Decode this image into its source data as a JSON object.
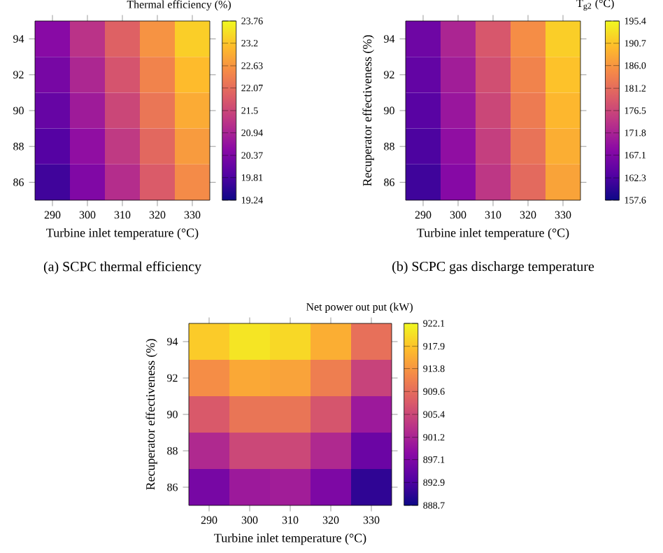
{
  "chart_data": [
    {
      "type": "heatmap",
      "title": "(a) SCPC thermal efficiency",
      "xlabel": "Turbine inlet temperature (°C)",
      "clabel": "Thermal efficiency (%)",
      "categories": [
        "290",
        "300",
        "310",
        "320",
        "330"
      ],
      "y_categories": [
        "94",
        "92",
        "90",
        "88",
        "86"
      ],
      "cells": [
        [
          20.5,
          21.2,
          21.9,
          22.6,
          23.3
        ],
        [
          20.3,
          21.0,
          21.7,
          22.4,
          23.1
        ],
        [
          20.1,
          20.8,
          21.5,
          22.2,
          22.9
        ],
        [
          19.9,
          20.6,
          21.3,
          22.0,
          22.7
        ],
        [
          19.7,
          20.4,
          21.1,
          21.8,
          22.5
        ]
      ],
      "clim": [
        19.24,
        23.76
      ],
      "cticks": [
        19.24,
        19.81,
        20.37,
        20.94,
        21.5,
        22.07,
        22.63,
        23.2,
        23.76
      ]
    },
    {
      "type": "heatmap",
      "title": "(b) SCPC  gas discharge temperature",
      "xlabel": "Turbine inlet temperature (°C)",
      "ylabel": "Recuperator effectiveness (%)",
      "clabel": "T$_{g2}$ (°C)",
      "categories": [
        "290",
        "300",
        "310",
        "320",
        "330"
      ],
      "y_categories": [
        "94",
        "92",
        "90",
        "88",
        "86"
      ],
      "cells": [
        [
          165.6,
          172.1,
          178.6,
          185.1,
          191.6
        ],
        [
          164.5,
          171.0,
          177.5,
          184.0,
          190.5
        ],
        [
          163.5,
          170.0,
          176.5,
          183.0,
          189.5
        ],
        [
          162.5,
          169.0,
          175.5,
          182.0,
          188.5
        ],
        [
          161.4,
          167.9,
          174.4,
          180.9,
          187.4
        ]
      ],
      "clim": [
        157.6,
        195.4
      ],
      "cticks": [
        157.6,
        162.3,
        167.1,
        171.8,
        176.5,
        181.2,
        {
          "value": 186,
          "label": "186.0"
        },
        190.7,
        195.4
      ]
    },
    {
      "type": "heatmap",
      "xlabel": "Turbine inlet temperature (°C)",
      "ylabel": "Recuperator effectiveness (%)",
      "clabel": "Net power out put (kW)",
      "categories": [
        "290",
        "300",
        "310",
        "320",
        "330"
      ],
      "y_categories": [
        "94",
        "92",
        "90",
        "88",
        "86"
      ],
      "cells": [
        [
          918.5,
          920.5,
          919.5,
          916,
          910
        ],
        [
          913,
          915.5,
          915,
          911.5,
          905
        ],
        [
          907.5,
          910.5,
          910.5,
          907,
          900
        ],
        [
          902,
          905.5,
          905.5,
          902,
          895.5
        ],
        [
          896.5,
          900,
          900.5,
          897,
          891
        ]
      ],
      "clim": [
        888.7,
        922.1
      ],
      "cticks": [
        888.7,
        892.9,
        897.1,
        901.2,
        905.4,
        909.6,
        913.8,
        917.9,
        922.1
      ]
    }
  ]
}
